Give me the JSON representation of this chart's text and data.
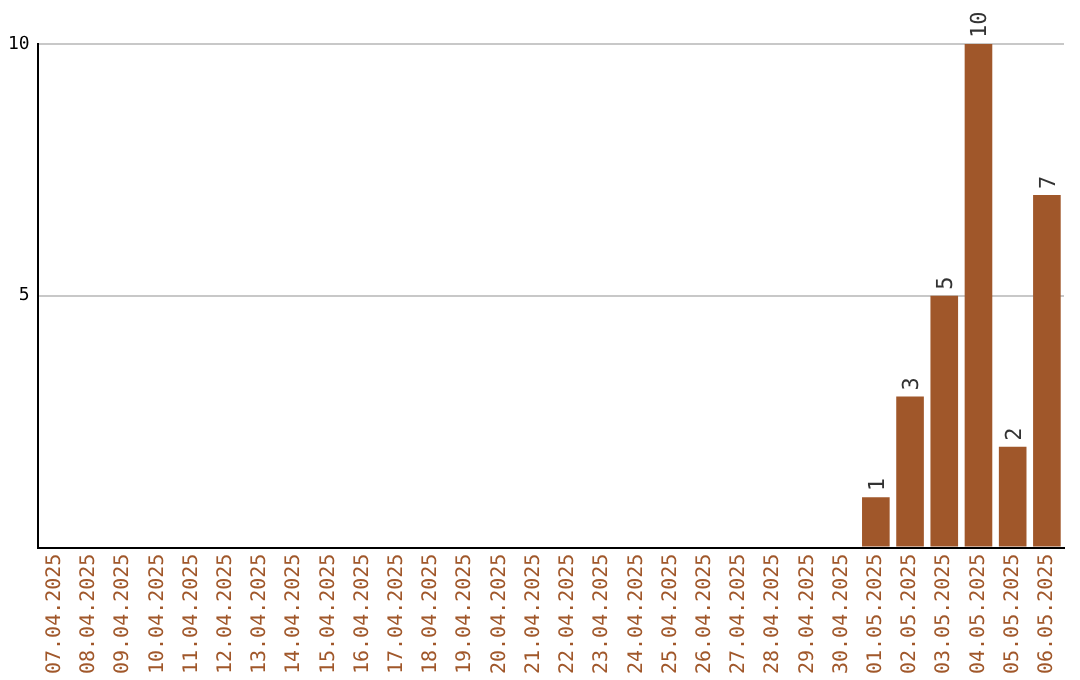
{
  "chart_data": {
    "type": "bar",
    "categories": [
      "07.04.2025",
      "08.04.2025",
      "09.04.2025",
      "10.04.2025",
      "11.04.2025",
      "12.04.2025",
      "13.04.2025",
      "14.04.2025",
      "15.04.2025",
      "16.04.2025",
      "17.04.2025",
      "18.04.2025",
      "19.04.2025",
      "20.04.2025",
      "21.04.2025",
      "22.04.2025",
      "23.04.2025",
      "24.04.2025",
      "25.04.2025",
      "26.04.2025",
      "27.04.2025",
      "28.04.2025",
      "29.04.2025",
      "30.04.2025",
      "01.05.2025",
      "02.05.2025",
      "03.05.2025",
      "04.05.2025",
      "05.05.2025",
      "06.05.2025"
    ],
    "values": [
      0,
      0,
      0,
      0,
      0,
      0,
      0,
      0,
      0,
      0,
      0,
      0,
      0,
      0,
      0,
      0,
      0,
      0,
      0,
      0,
      0,
      0,
      0,
      0,
      1,
      3,
      5,
      10,
      2,
      7
    ],
    "value_labels": [
      null,
      null,
      null,
      null,
      null,
      null,
      null,
      null,
      null,
      null,
      null,
      null,
      null,
      null,
      null,
      null,
      null,
      null,
      null,
      null,
      null,
      null,
      null,
      null,
      "1",
      "3",
      "5",
      "10",
      "2",
      "7"
    ],
    "color": "#a0572a",
    "ylim": [
      0,
      10
    ],
    "yticks": [
      {
        "value": 0,
        "label": null
      },
      5,
      10
    ],
    "grid": "y",
    "legend": false
  }
}
